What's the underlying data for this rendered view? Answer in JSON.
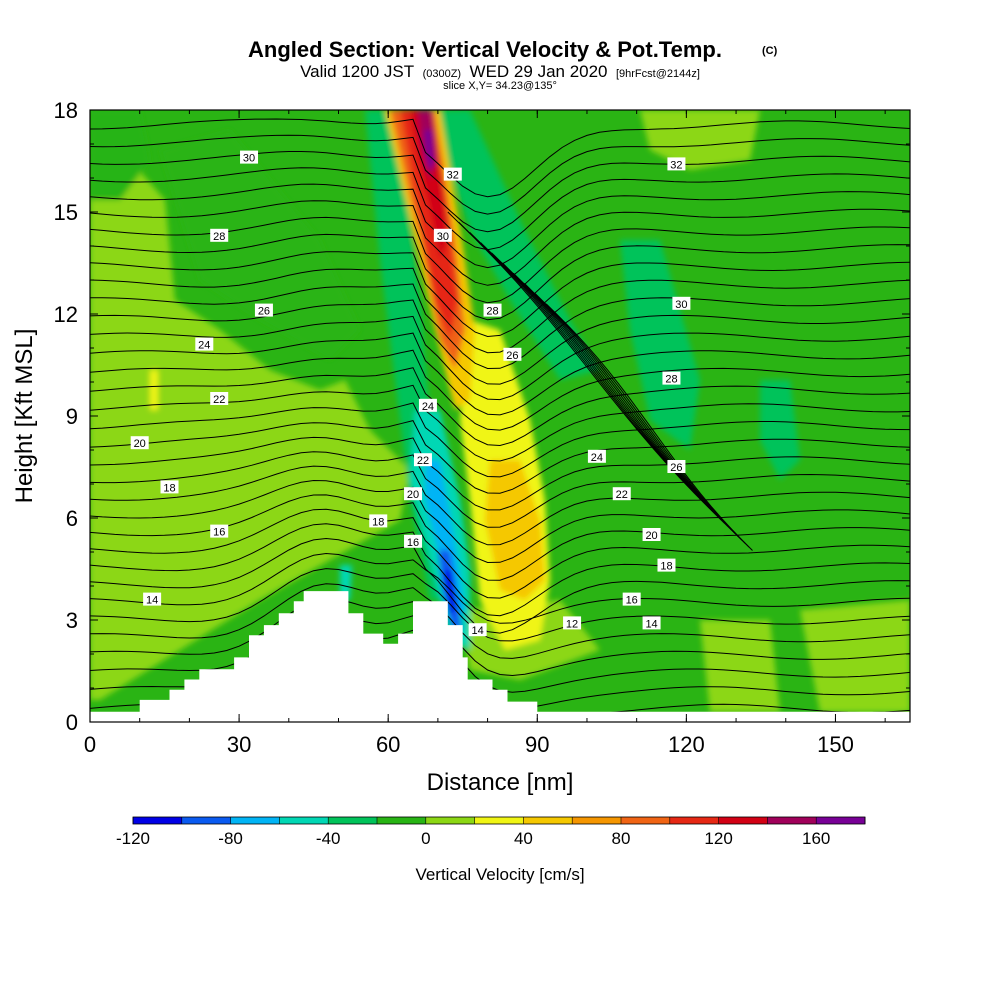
{
  "title": {
    "main": "Angled Section: Vertical Velocity & Pot.Temp.",
    "copyright": "(C)",
    "valid_prefix": "Valid 1200 JST",
    "valid_zulu": "(0300Z)",
    "valid_date": "WED 29 Jan 2020",
    "forecast": "[9hrFcst@2144z]",
    "slice": "slice X,Y= 34.23@135°"
  },
  "chart_data": {
    "type": "heatmap",
    "xlabel": "Distance [nm]",
    "ylabel": "Height [Kft MSL]",
    "xlim": [
      0,
      165
    ],
    "ylim": [
      0,
      18
    ],
    "x_ticks": [
      0,
      30,
      60,
      90,
      120,
      150
    ],
    "y_ticks": [
      0,
      3,
      6,
      9,
      12,
      15,
      18
    ],
    "colorbar": {
      "label": "Vertical Velocity [cm/s]",
      "bounds": [
        -120,
        180
      ],
      "step": 20,
      "tick_values": [
        -120,
        -80,
        -40,
        0,
        40,
        80,
        120,
        160
      ],
      "colors": [
        "#0000e6",
        "#0a5af0",
        "#00b4f5",
        "#00d7b4",
        "#00c35a",
        "#28b414",
        "#8cd714",
        "#f0f514",
        "#f5c800",
        "#f59600",
        "#f06414",
        "#e62814",
        "#d20014",
        "#a0005a",
        "#780096"
      ]
    },
    "terrain_profile": [
      {
        "x": 0,
        "h": 0.3
      },
      {
        "x": 10,
        "h": 0.3
      },
      {
        "x": 10,
        "h": 0.65
      },
      {
        "x": 16,
        "h": 0.65
      },
      {
        "x": 16,
        "h": 0.95
      },
      {
        "x": 19,
        "h": 0.95
      },
      {
        "x": 19,
        "h": 1.25
      },
      {
        "x": 22,
        "h": 1.25
      },
      {
        "x": 22,
        "h": 1.55
      },
      {
        "x": 29,
        "h": 1.55
      },
      {
        "x": 29,
        "h": 1.9
      },
      {
        "x": 32,
        "h": 1.9
      },
      {
        "x": 32,
        "h": 2.55
      },
      {
        "x": 35,
        "h": 2.55
      },
      {
        "x": 35,
        "h": 2.85
      },
      {
        "x": 38,
        "h": 2.85
      },
      {
        "x": 38,
        "h": 3.2
      },
      {
        "x": 41,
        "h": 3.2
      },
      {
        "x": 41,
        "h": 3.55
      },
      {
        "x": 43,
        "h": 3.55
      },
      {
        "x": 43,
        "h": 3.85
      },
      {
        "x": 52,
        "h": 3.85
      },
      {
        "x": 52,
        "h": 3.2
      },
      {
        "x": 55,
        "h": 3.2
      },
      {
        "x": 55,
        "h": 2.6
      },
      {
        "x": 59,
        "h": 2.6
      },
      {
        "x": 59,
        "h": 2.3
      },
      {
        "x": 62,
        "h": 2.3
      },
      {
        "x": 62,
        "h": 2.6
      },
      {
        "x": 65,
        "h": 2.6
      },
      {
        "x": 65,
        "h": 3.55
      },
      {
        "x": 72,
        "h": 3.55
      },
      {
        "x": 72,
        "h": 2.85
      },
      {
        "x": 75,
        "h": 2.85
      },
      {
        "x": 75,
        "h": 1.9
      },
      {
        "x": 76,
        "h": 1.9
      },
      {
        "x": 76,
        "h": 1.25
      },
      {
        "x": 81,
        "h": 1.25
      },
      {
        "x": 81,
        "h": 0.95
      },
      {
        "x": 84,
        "h": 0.95
      },
      {
        "x": 84,
        "h": 0.6
      },
      {
        "x": 90,
        "h": 0.6
      },
      {
        "x": 90,
        "h": 0.3
      },
      {
        "x": 165,
        "h": 0.3
      }
    ],
    "contour_labels": [
      {
        "text": "30",
        "x": 32,
        "y": 16.6
      },
      {
        "text": "28",
        "x": 26,
        "y": 14.3
      },
      {
        "text": "26",
        "x": 35,
        "y": 12.1
      },
      {
        "text": "24",
        "x": 23,
        "y": 11.1
      },
      {
        "text": "22",
        "x": 26,
        "y": 9.5
      },
      {
        "text": "20",
        "x": 10,
        "y": 8.2
      },
      {
        "text": "18",
        "x": 16,
        "y": 6.9
      },
      {
        "text": "16",
        "x": 26,
        "y": 5.6
      },
      {
        "text": "14",
        "x": 12.5,
        "y": 3.6
      },
      {
        "text": "32",
        "x": 73,
        "y": 16.1
      },
      {
        "text": "30",
        "x": 71,
        "y": 14.3
      },
      {
        "text": "28",
        "x": 81,
        "y": 12.1
      },
      {
        "text": "26",
        "x": 85,
        "y": 10.8
      },
      {
        "text": "24",
        "x": 68,
        "y": 9.3
      },
      {
        "text": "22",
        "x": 67,
        "y": 7.7
      },
      {
        "text": "20",
        "x": 65,
        "y": 6.7
      },
      {
        "text": "18",
        "x": 58,
        "y": 5.9
      },
      {
        "text": "16",
        "x": 65,
        "y": 5.3
      },
      {
        "text": "14",
        "x": 78,
        "y": 2.7
      },
      {
        "text": "12",
        "x": 97,
        "y": 2.9
      },
      {
        "text": "14",
        "x": 113,
        "y": 2.9
      },
      {
        "text": "16",
        "x": 109,
        "y": 3.6
      },
      {
        "text": "18",
        "x": 116,
        "y": 4.6
      },
      {
        "text": "20",
        "x": 113,
        "y": 5.5
      },
      {
        "text": "22",
        "x": 107,
        "y": 6.7
      },
      {
        "text": "24",
        "x": 102,
        "y": 7.8
      },
      {
        "text": "26",
        "x": 118,
        "y": 7.5
      },
      {
        "text": "28",
        "x": 117,
        "y": 10.1
      },
      {
        "text": "30",
        "x": 119,
        "y": 12.3
      },
      {
        "text": "32",
        "x": 118,
        "y": 16.4
      }
    ]
  }
}
